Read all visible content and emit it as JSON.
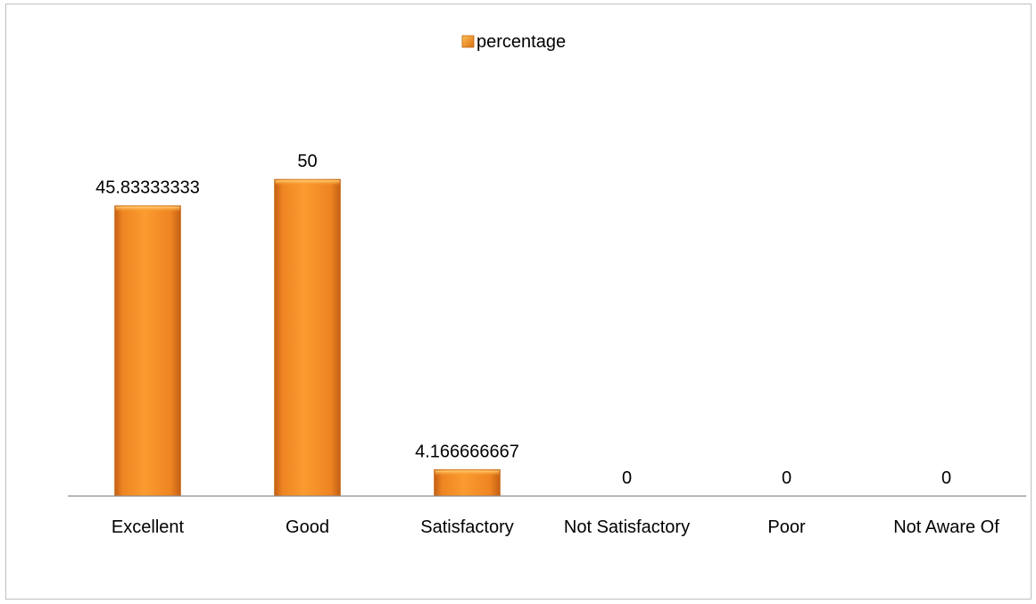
{
  "chart_data": {
    "type": "bar",
    "title": "",
    "xlabel": "",
    "ylabel": "",
    "categories": [
      "Excellent",
      "Good",
      "Satisfactory",
      "Not Satisfactory",
      "Poor",
      "Not Aware Of"
    ],
    "series": [
      {
        "name": "percentage",
        "values": [
          45.83333333,
          50,
          4.166666667,
          0,
          0,
          0
        ],
        "labels": [
          "45.83333333",
          "50",
          "4.166666667",
          "0",
          "0",
          "0"
        ],
        "color": "#f7961e"
      }
    ],
    "ylim": [
      0,
      59
    ],
    "grid": false,
    "legend": "top-center",
    "data_labels": true
  }
}
